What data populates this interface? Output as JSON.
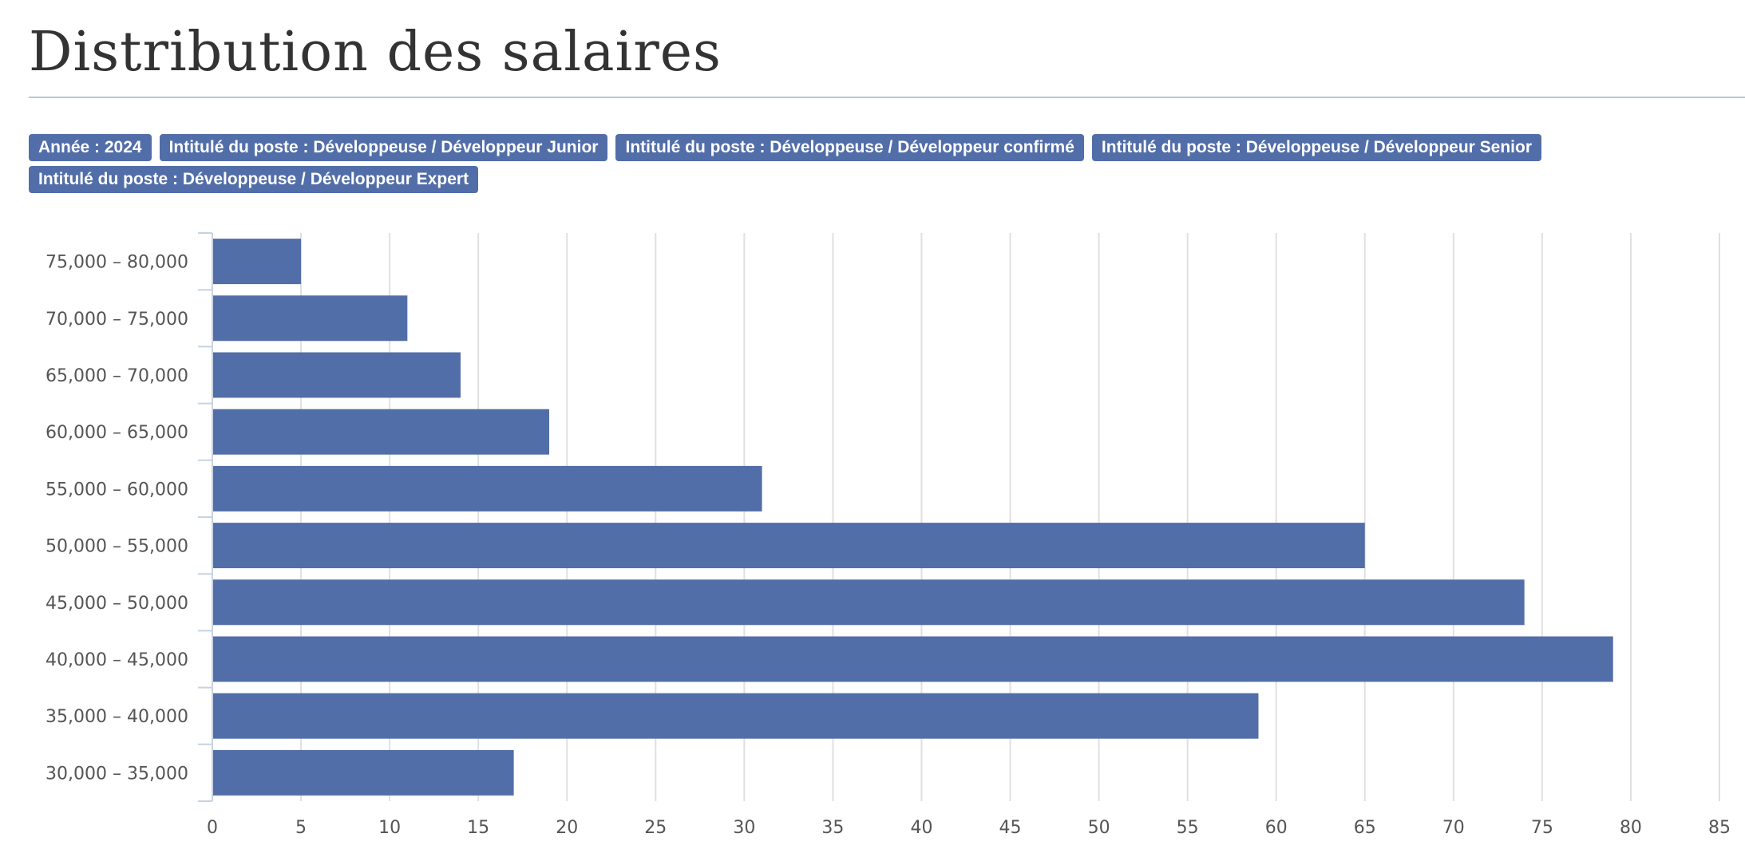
{
  "title": "Distribution des salaires",
  "filters": [
    "Année : 2024",
    "Intitulé du poste : Développeuse / Développeur Junior",
    "Intitulé du poste : Développeuse / Développeur confirmé",
    "Intitulé du poste : Développeuse / Développeur Senior",
    "Intitulé du poste : Développeuse / Développeur Expert"
  ],
  "colors": {
    "bar": "#526ea9",
    "grid": "#e0e0e0",
    "tag": "#526ea9"
  },
  "chart_data": {
    "type": "bar",
    "orientation": "horizontal",
    "title": "",
    "xlabel": "",
    "ylabel": "",
    "categories": [
      "75,000 – 80,000",
      "70,000 – 75,000",
      "65,000 – 70,000",
      "60,000 – 65,000",
      "55,000 – 60,000",
      "50,000 – 55,000",
      "45,000 – 50,000",
      "40,000 – 45,000",
      "35,000 – 40,000",
      "30,000 – 35,000"
    ],
    "values": [
      5,
      11,
      14,
      19,
      31,
      65,
      74,
      79,
      59,
      17
    ],
    "xlim": [
      0,
      85
    ],
    "xticks": [
      0,
      5,
      10,
      15,
      20,
      25,
      30,
      35,
      40,
      45,
      50,
      55,
      60,
      65,
      70,
      75,
      80,
      85
    ],
    "grid": true,
    "legend": "none"
  }
}
